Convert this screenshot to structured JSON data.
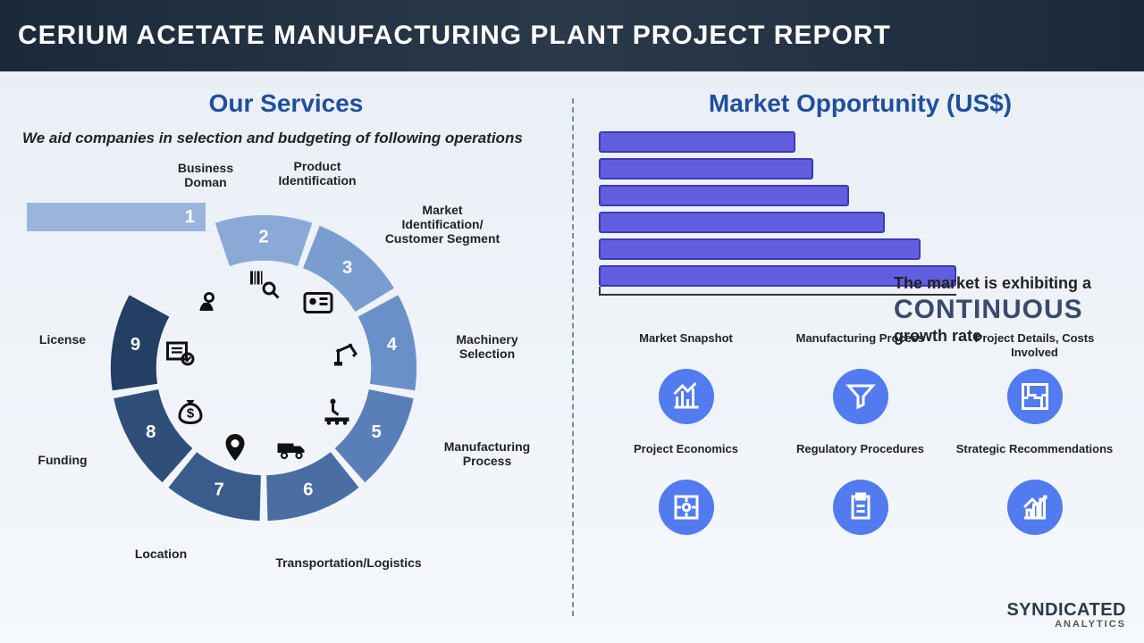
{
  "header": {
    "title": "CERIUM ACETATE MANUFACTURING PLANT PROJECT REPORT"
  },
  "left": {
    "title": "Our Services",
    "subtitle": "We aid companies in selection and budgeting of following operations",
    "segments": [
      {
        "num": "1",
        "label": "Business Doman",
        "color": "#9bb4dc"
      },
      {
        "num": "2",
        "label": "Product Identification",
        "color": "#8aa9d6"
      },
      {
        "num": "3",
        "label": "Market Identification/ Customer Segment",
        "color": "#7a9dd0"
      },
      {
        "num": "4",
        "label": "Machinery Selection",
        "color": "#6a90c9"
      },
      {
        "num": "5",
        "label": "Manufacturing Process",
        "color": "#5a7fb8"
      },
      {
        "num": "6",
        "label": "Transportation/Logistics",
        "color": "#4a6da2"
      },
      {
        "num": "7",
        "label": "Location",
        "color": "#3a5c8c"
      },
      {
        "num": "8",
        "label": "Funding",
        "color": "#2f4f7a"
      },
      {
        "num": "9",
        "label": "License",
        "color": "#233f63"
      }
    ],
    "wheel": {
      "outer_radius": 185,
      "inner_radius": 130,
      "gap_deg": 3,
      "icons": [
        "head-bulb",
        "barcode-magnifier",
        "id-card",
        "robot-arm",
        "worker-conveyor",
        "truck",
        "map-pin",
        "money-bag",
        "cert-check"
      ]
    }
  },
  "right": {
    "title": "Market Opportunity (US$)",
    "chart": {
      "bar_color": "#615fe0",
      "border_color": "#3b39b8",
      "bar_widths_pct": [
        55,
        60,
        70,
        80,
        90,
        100
      ]
    },
    "growth": {
      "line1": "The market is exhibiting a",
      "word": "CONTINUOUS",
      "line2": "growth rate"
    },
    "info_items": [
      {
        "label": "Market Snapshot",
        "icon": "chart-up"
      },
      {
        "label": "Manufacturing Process",
        "icon": "funnel"
      },
      {
        "label": "Project Details, Costs Involved",
        "icon": "maze"
      },
      {
        "label": "Project Economics",
        "icon": "puzzle"
      },
      {
        "label": "Regulatory Procedures",
        "icon": "clipboard"
      },
      {
        "label": "Strategic Recommendations",
        "icon": "bar-arrow"
      }
    ],
    "info_circle_color": "#527bf0"
  },
  "logo": {
    "main": "SYNDICATED",
    "sub": "ANALYTICS"
  }
}
